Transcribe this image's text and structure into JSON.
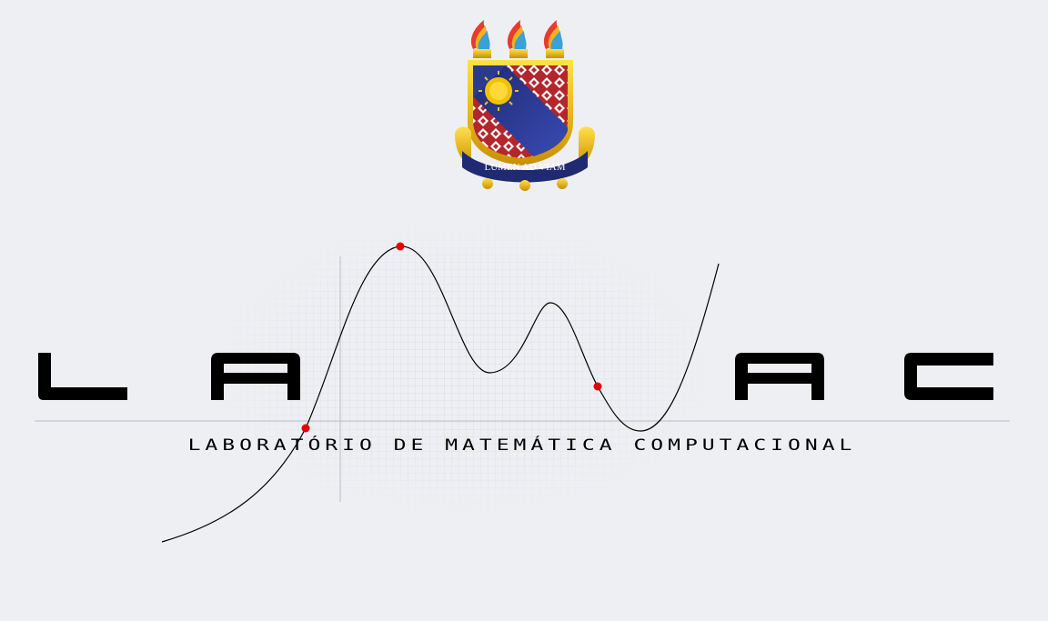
{
  "crest": {
    "motto": "LUMEN AD VIAM"
  },
  "logo": {
    "letters": [
      "L",
      "A",
      "M",
      "A",
      "C"
    ],
    "subtitle": "LABORATÓRIO DE MATEMÁTICA COMPUTACIONAL"
  },
  "colors": {
    "background": "#eeeff3",
    "crest_blue": "#2b3a8f",
    "crest_gold": "#e8b800",
    "crest_red": "#c0272d",
    "curve_point": "#e00000",
    "ink": "#000000"
  },
  "icons": {
    "crest": "university-crest-icon",
    "torch": "torch-icon"
  }
}
